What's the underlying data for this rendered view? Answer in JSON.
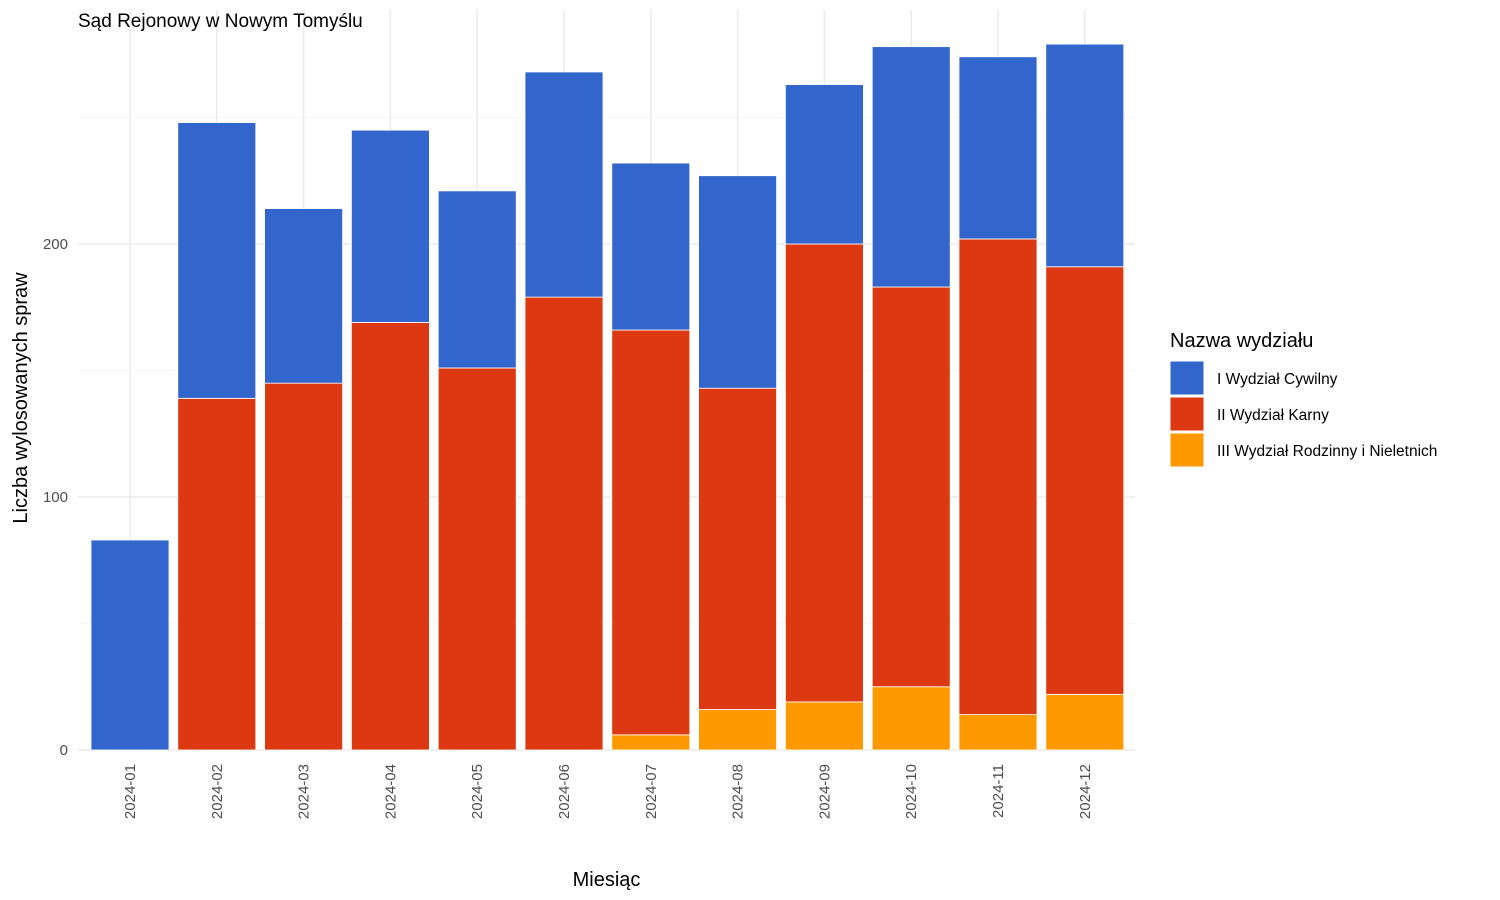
{
  "chart_data": {
    "type": "bar",
    "stacked": true,
    "title": "Sąd Rejonowy w Nowym Tomyślu",
    "xlabel": "Miesiąc",
    "ylabel": "Liczba wylosowanych spraw",
    "ylim": [
      0,
      280
    ],
    "yticks": [
      0,
      100,
      200
    ],
    "grid": true,
    "legend": {
      "title": "Nazwa wydziału",
      "position": "right"
    },
    "categories": [
      "2024-01",
      "2024-02",
      "2024-03",
      "2024-04",
      "2024-05",
      "2024-06",
      "2024-07",
      "2024-08",
      "2024-09",
      "2024-10",
      "2024-11",
      "2024-12"
    ],
    "series": [
      {
        "name": "III Wydział Rodzinny i Nieletnich",
        "color": "#ff9900",
        "values": [
          0,
          0,
          0,
          0,
          0,
          0,
          6,
          16,
          19,
          25,
          14,
          22
        ]
      },
      {
        "name": "II Wydział Karny",
        "color": "#dc3912",
        "values": [
          0,
          139,
          145,
          169,
          151,
          179,
          160,
          127,
          181,
          158,
          188,
          169
        ]
      },
      {
        "name": "I Wydział Cywilny",
        "color": "#3366cc",
        "values": [
          83,
          109,
          69,
          76,
          70,
          89,
          66,
          84,
          63,
          95,
          72,
          88
        ]
      }
    ],
    "legend_order": [
      "I Wydział Cywilny",
      "II Wydział Karny",
      "III Wydział Rodzinny i Nieletnich"
    ]
  }
}
